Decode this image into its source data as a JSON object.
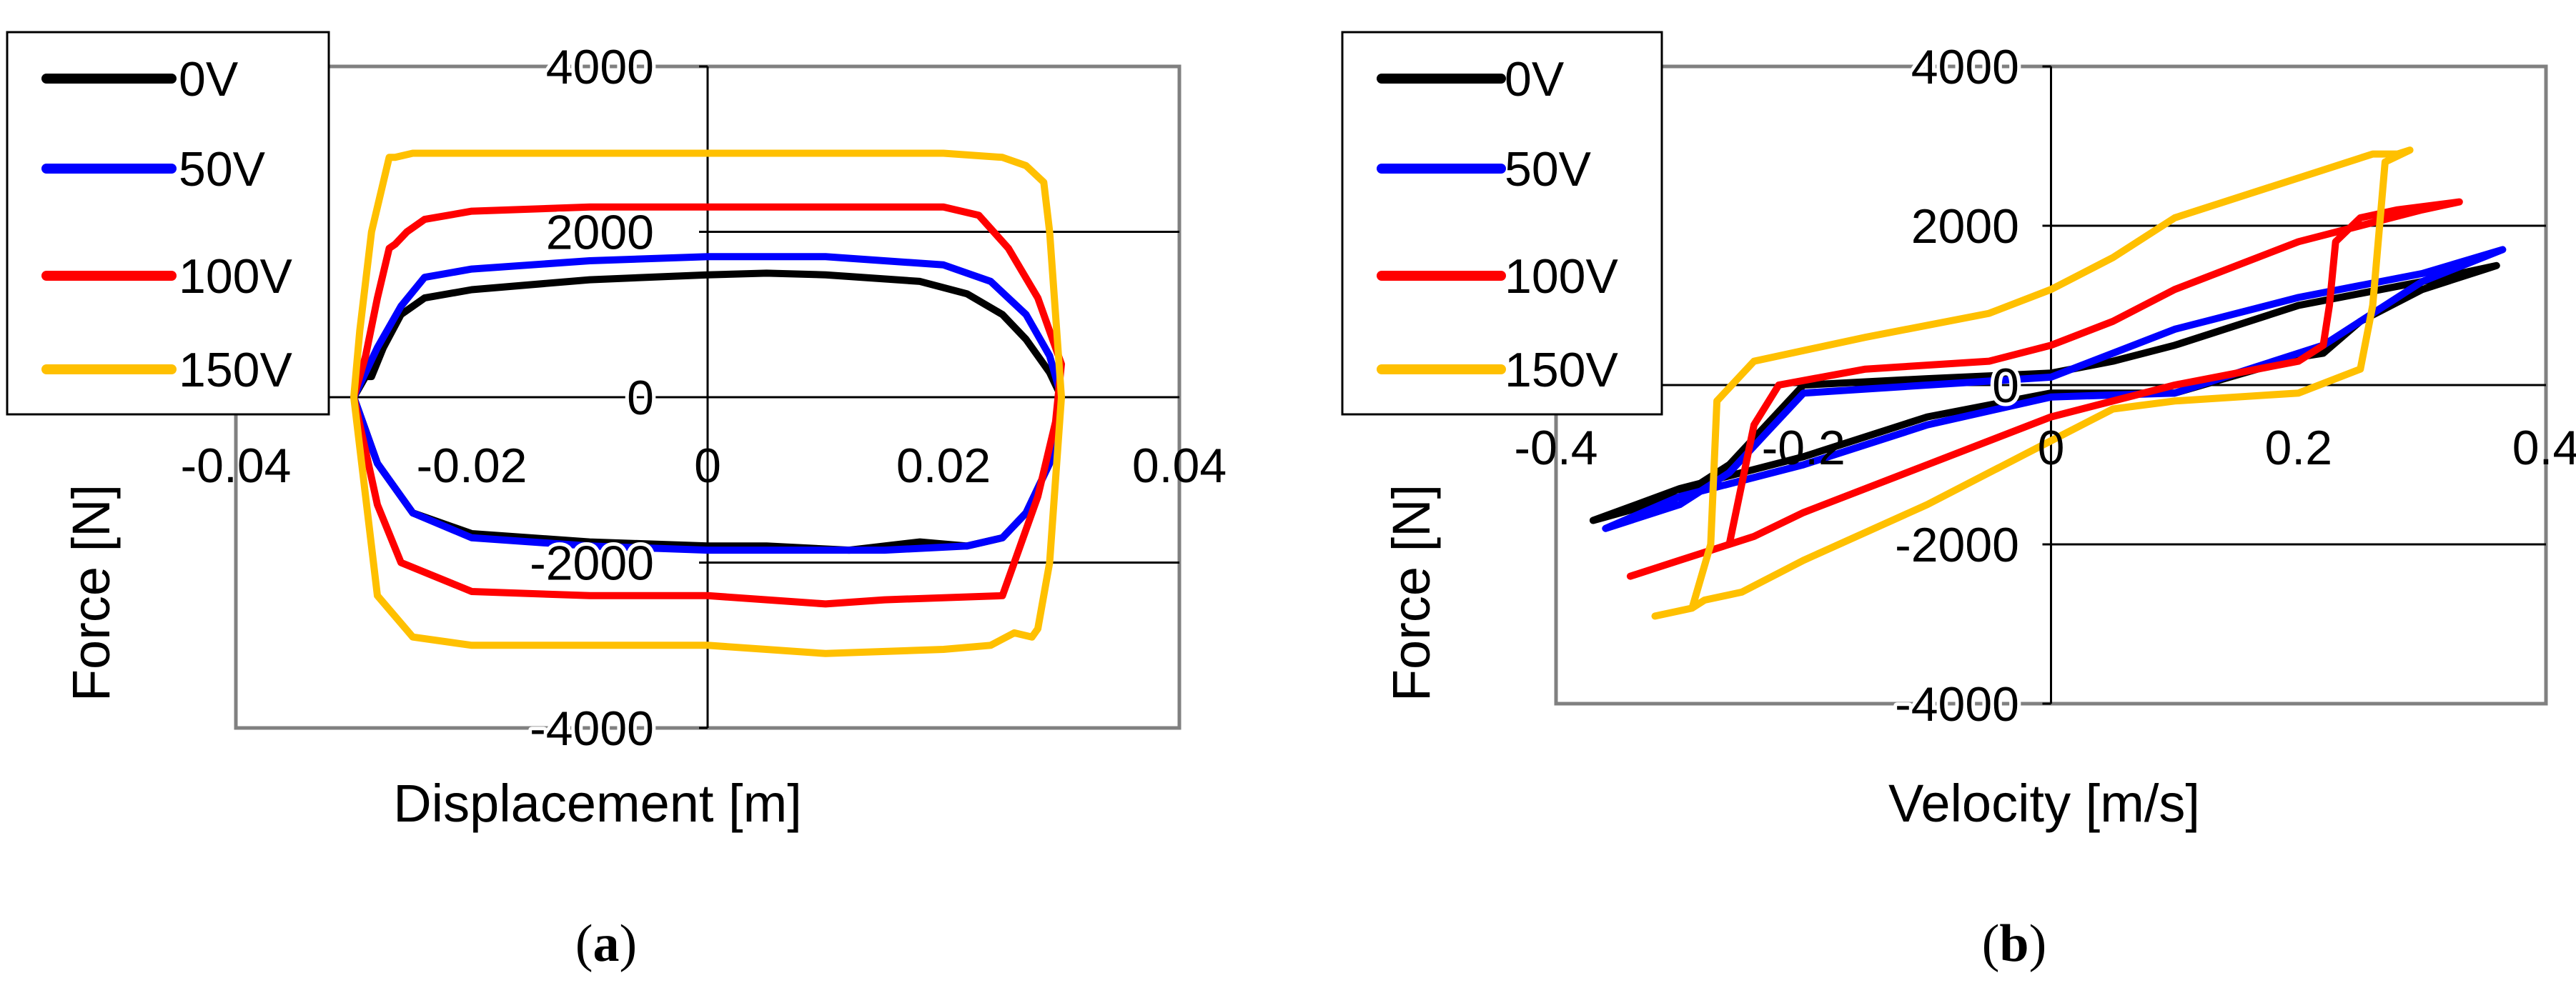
{
  "colors": {
    "0V": "#000000",
    "50V": "#0000FF",
    "100V": "#FF0000",
    "150V": "#FFC000",
    "frame": "#808080",
    "grid": "#000000"
  },
  "chart_data": [
    {
      "type": "line",
      "panel": "a",
      "caption_open": "(",
      "caption_letter": "a",
      "caption_close": ")",
      "xlabel": "Displacement [m]",
      "ylabel": "Force [N]",
      "xlim": [
        -0.04,
        0.04
      ],
      "ylim": [
        -4000,
        4000
      ],
      "x_ticks": [
        -0.04,
        -0.02,
        0,
        0.02,
        0.04
      ],
      "x_tick_labels": [
        "-0.04",
        "-0.02",
        "0",
        "0.02",
        "0.04"
      ],
      "y_ticks": [
        -4000,
        -2000,
        0,
        2000,
        4000
      ],
      "y_tick_labels": [
        "-4000",
        "-2000",
        "0",
        "2000",
        "4000"
      ],
      "legend": [
        "0V",
        "50V",
        "100V",
        "150V"
      ],
      "legend_position": "top-left",
      "series": [
        {
          "name": "0V",
          "x": [
            -0.03,
            -0.029,
            -0.0285,
            -0.0275,
            -0.026,
            -0.024,
            -0.02,
            -0.01,
            0,
            0.005,
            0.01,
            0.018,
            0.022,
            0.025,
            0.027,
            0.029,
            0.03,
            0.029,
            0.027,
            0.025,
            0.022,
            0.018,
            0.012,
            0.005,
            0,
            -0.01,
            -0.02,
            -0.025,
            -0.028,
            -0.03
          ],
          "y": [
            0,
            250,
            250,
            600,
            1000,
            1200,
            1300,
            1420,
            1480,
            1500,
            1480,
            1400,
            1250,
            1000,
            700,
            300,
            0,
            -800,
            -1400,
            -1700,
            -1800,
            -1750,
            -1850,
            -1800,
            -1800,
            -1750,
            -1650,
            -1400,
            -800,
            0
          ]
        },
        {
          "name": "50V",
          "x": [
            -0.03,
            -0.029,
            -0.028,
            -0.026,
            -0.024,
            -0.02,
            -0.01,
            0,
            0.01,
            0.02,
            0.024,
            0.027,
            0.029,
            0.03,
            0.029,
            0.027,
            0.025,
            0.022,
            0.015,
            0.005,
            0,
            -0.01,
            -0.02,
            -0.025,
            -0.028,
            -0.03
          ],
          "y": [
            0,
            300,
            600,
            1100,
            1450,
            1550,
            1650,
            1700,
            1700,
            1600,
            1400,
            1000,
            500,
            0,
            -800,
            -1400,
            -1700,
            -1800,
            -1850,
            -1850,
            -1850,
            -1800,
            -1700,
            -1400,
            -800,
            0
          ]
        },
        {
          "name": "100V",
          "x": [
            -0.03,
            -0.029,
            -0.028,
            -0.027,
            -0.0265,
            -0.0255,
            -0.024,
            -0.02,
            -0.01,
            0,
            0.01,
            0.02,
            0.023,
            0.0255,
            0.028,
            0.03,
            0.0295,
            0.028,
            0.0265,
            0.025,
            0.015,
            0.01,
            0,
            -0.01,
            -0.02,
            -0.026,
            -0.028,
            -0.03
          ],
          "y": [
            0,
            500,
            1200,
            1800,
            1850,
            2000,
            2150,
            2250,
            2300,
            2300,
            2300,
            2300,
            2200,
            1800,
            1200,
            400,
            -300,
            -1200,
            -1800,
            -2400,
            -2450,
            -2500,
            -2400,
            -2400,
            -2350,
            -2000,
            -1300,
            0
          ]
        },
        {
          "name": "150V",
          "x": [
            -0.03,
            -0.0295,
            -0.0285,
            -0.027,
            -0.0265,
            -0.025,
            -0.02,
            -0.01,
            0,
            0.01,
            0.02,
            0.025,
            0.027,
            0.0285,
            0.029,
            0.0295,
            0.03,
            0.029,
            0.028,
            0.0275,
            0.026,
            0.024,
            0.02,
            0.01,
            0,
            -0.01,
            -0.02,
            -0.025,
            -0.028,
            -0.03
          ],
          "y": [
            0,
            800,
            2000,
            2900,
            2900,
            2950,
            2950,
            2950,
            2950,
            2950,
            2950,
            2900,
            2800,
            2600,
            2000,
            1000,
            0,
            -2000,
            -2800,
            -2900,
            -2850,
            -3000,
            -3050,
            -3100,
            -3000,
            -3000,
            -3000,
            -2900,
            -2400,
            0
          ]
        }
      ]
    },
    {
      "type": "line",
      "panel": "b",
      "caption_open": "(",
      "caption_letter": "b",
      "caption_close": ")",
      "xlabel": "Velocity [m/s]",
      "ylabel": "Force [N]",
      "xlim": [
        -0.4,
        0.4
      ],
      "ylim": [
        -4000,
        4000
      ],
      "x_ticks": [
        -0.4,
        -0.2,
        0,
        0.2,
        0.4
      ],
      "x_tick_labels": [
        "-0.4",
        "-0.2",
        "0",
        "0.2",
        "0.4"
      ],
      "y_ticks": [
        -4000,
        -2000,
        0,
        2000,
        4000
      ],
      "y_tick_labels": [
        "-4000",
        "-2000",
        "0",
        "2000",
        "4000"
      ],
      "legend": [
        "0V",
        "50V",
        "100V",
        "150V"
      ],
      "legend_position": "top-left",
      "series": [
        {
          "name": "0V",
          "x": [
            -0.37,
            -0.3,
            -0.26,
            -0.23,
            -0.2,
            -0.1,
            0,
            0.05,
            0.1,
            0.2,
            0.3,
            0.36,
            0.3,
            0.25,
            0.22,
            0.2,
            0.1,
            0,
            -0.1,
            -0.2,
            -0.3,
            -0.37
          ],
          "y": [
            -1700,
            -1400,
            -1000,
            -500,
            0,
            80,
            150,
            300,
            500,
            1000,
            1300,
            1500,
            1200,
            800,
            400,
            350,
            -100,
            -100,
            -400,
            -900,
            -1300,
            -1700
          ]
        },
        {
          "name": "50V",
          "x": [
            -0.36,
            -0.3,
            -0.26,
            -0.23,
            -0.2,
            -0.1,
            0,
            0.05,
            0.1,
            0.2,
            0.3,
            0.365,
            0.3,
            0.25,
            0.22,
            0.2,
            0.1,
            0,
            -0.1,
            -0.2,
            -0.3,
            -0.36
          ],
          "y": [
            -1800,
            -1500,
            -1100,
            -600,
            -100,
            0,
            100,
            400,
            700,
            1100,
            1400,
            1700,
            1300,
            800,
            500,
            400,
            -100,
            -150,
            -500,
            -1000,
            -1400,
            -1800
          ]
        },
        {
          "name": "100V",
          "x": [
            -0.34,
            -0.3,
            -0.26,
            -0.24,
            -0.22,
            -0.15,
            -0.05,
            0,
            0.05,
            0.1,
            0.2,
            0.3,
            0.33,
            0.28,
            0.25,
            0.23,
            0.225,
            0.22,
            0.2,
            0.1,
            0,
            -0.1,
            -0.2,
            -0.24,
            -0.26,
            -0.3,
            -0.34
          ],
          "y": [
            -2400,
            -2200,
            -2000,
            -500,
            0,
            200,
            300,
            500,
            800,
            1200,
            1800,
            2200,
            2300,
            2200,
            2100,
            1800,
            1000,
            500,
            300,
            0,
            -400,
            -1000,
            -1600,
            -1900,
            -2000,
            -2200,
            -2400
          ]
        },
        {
          "name": "150V",
          "x": [
            -0.32,
            -0.29,
            -0.275,
            -0.27,
            -0.24,
            -0.15,
            -0.05,
            0,
            0.05,
            0.1,
            0.2,
            0.26,
            0.28,
            0.29,
            0.27,
            0.26,
            0.25,
            0.2,
            0.1,
            0.05,
            0,
            -0.1,
            -0.2,
            -0.25,
            -0.28,
            -0.29,
            -0.32
          ],
          "y": [
            -2900,
            -2800,
            -2000,
            -200,
            300,
            600,
            900,
            1200,
            1600,
            2100,
            2600,
            2900,
            2900,
            2950,
            2800,
            1000,
            200,
            -100,
            -200,
            -300,
            -700,
            -1500,
            -2200,
            -2600,
            -2700,
            -2800,
            -2900
          ]
        }
      ]
    }
  ]
}
